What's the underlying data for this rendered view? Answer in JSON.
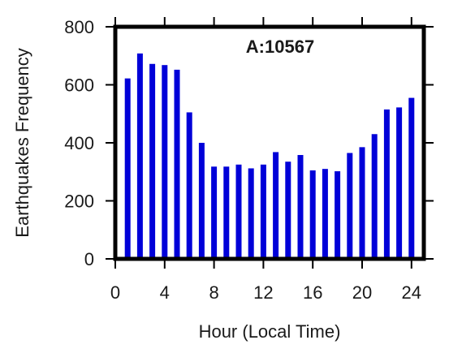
{
  "chart_data": {
    "type": "bar",
    "annotation": "A:10567",
    "xlabel": "Hour (Local Time)",
    "ylabel": "Earthquakes Frequency",
    "xlim": [
      0,
      25
    ],
    "ylim": [
      0,
      800
    ],
    "xticks": [
      0,
      4,
      8,
      12,
      16,
      20,
      24
    ],
    "yticks": [
      0,
      200,
      400,
      600,
      800
    ],
    "grid": false,
    "legend": "none",
    "bar_color": "#0000d8",
    "x": [
      1,
      2,
      3,
      4,
      5,
      6,
      7,
      8,
      9,
      10,
      11,
      12,
      13,
      14,
      15,
      16,
      17,
      18,
      19,
      20,
      21,
      22,
      23,
      24
    ],
    "values": [
      622,
      708,
      672,
      668,
      652,
      505,
      400,
      318,
      318,
      325,
      312,
      325,
      368,
      335,
      358,
      305,
      310,
      302,
      365,
      385,
      430,
      515,
      522,
      555
    ]
  }
}
